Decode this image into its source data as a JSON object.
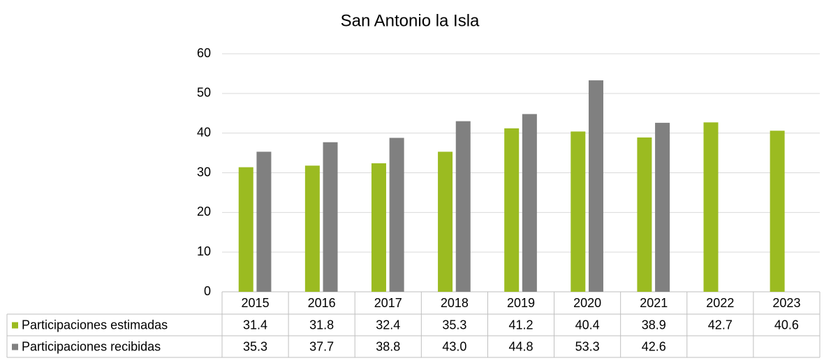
{
  "chart_data": {
    "type": "bar",
    "title": "San Antonio la Isla",
    "categories": [
      "2015",
      "2016",
      "2017",
      "2018",
      "2019",
      "2020",
      "2021",
      "2022",
      "2023"
    ],
    "series": [
      {
        "name": "Participaciones estimadas",
        "color": "#9bbb21",
        "values": [
          31.4,
          31.8,
          32.4,
          35.3,
          41.2,
          40.4,
          38.9,
          42.7,
          40.6
        ]
      },
      {
        "name": "Participaciones recibidas",
        "color": "#808080",
        "values": [
          35.3,
          37.7,
          38.8,
          43.0,
          44.8,
          53.3,
          42.6,
          null,
          null
        ],
        "value_labels": [
          "35.3",
          "37.7",
          "38.8",
          "43.0",
          "44.8",
          "53.3",
          "42.6",
          null,
          null
        ]
      }
    ],
    "ylim": [
      0,
      60
    ],
    "yticks": [
      0,
      10,
      20,
      30,
      40,
      50,
      60
    ],
    "grid": true,
    "legend": "table"
  }
}
